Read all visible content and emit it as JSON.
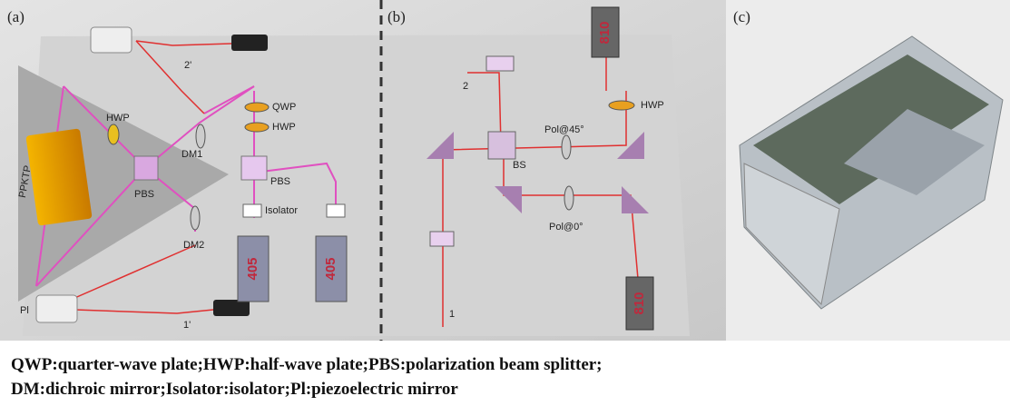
{
  "panel_labels": [
    "(a)",
    "(b)",
    "(c)"
  ],
  "panel_a": {
    "labels": [
      "2'",
      "QWP",
      "HWP",
      "HWP",
      "DM1",
      "PPKTP",
      "PBS",
      "PBS",
      "Isolator",
      "DM2",
      "405",
      "405",
      "Pl",
      "1'"
    ]
  },
  "panel_b": {
    "labels": [
      "2",
      "BS",
      "Pol@45°",
      "HWP",
      "810",
      "810",
      "Pol@0°",
      "1"
    ]
  },
  "caption": [
    "QWP:quarter-wave plate;HWP:half-wave plate;PBS:polarization beam splitter;",
    "DM:dichroic mirror;Isolator:isolator;Pl:piezoelectric mirror"
  ]
}
